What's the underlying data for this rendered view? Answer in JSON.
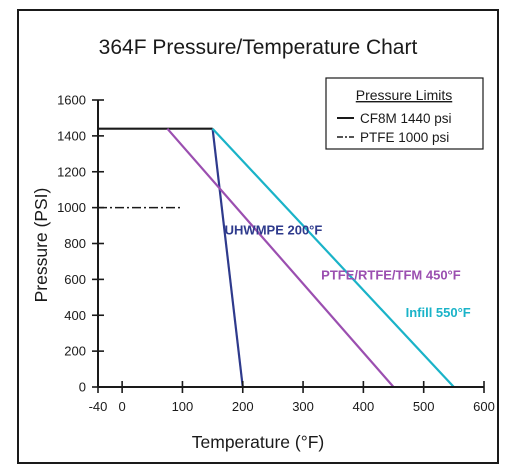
{
  "chart_data": {
    "type": "line",
    "title": "364F Pressure/Temperature Chart",
    "xlabel": "Temperature (°F)",
    "ylabel": "Pressure (PSI)",
    "xlim": [
      -40,
      600
    ],
    "ylim": [
      0,
      1600
    ],
    "x_ticks": [
      -40,
      0,
      100,
      200,
      300,
      400,
      500,
      600
    ],
    "y_ticks": [
      0,
      200,
      400,
      600,
      800,
      1000,
      1200,
      1400,
      1600
    ],
    "grid": false,
    "legend": {
      "title": "Pressure Limits",
      "placement": "top-right",
      "entries": [
        {
          "label": "CF8M 1440 psi",
          "style": "solid"
        },
        {
          "label": "PTFE 1000 psi",
          "style": "dash-dot"
        }
      ]
    },
    "series": [
      {
        "name": "CF8M 1440 psi",
        "color": "#1a1a1a",
        "style": "solid",
        "x": [
          -40,
          150
        ],
        "y": [
          1440,
          1440
        ]
      },
      {
        "name": "PTFE 1000 psi",
        "color": "#1a1a1a",
        "style": "dash-dot",
        "x": [
          -40,
          100
        ],
        "y": [
          1000,
          1000
        ]
      },
      {
        "name": "UHWMPE 200°F",
        "color": "#2e3a8c",
        "style": "solid",
        "x": [
          150,
          200
        ],
        "y": [
          1440,
          0
        ]
      },
      {
        "name": "PTFE/RTFE/TFM 450°F",
        "color": "#9b4fb0",
        "style": "solid",
        "x": [
          75,
          450
        ],
        "y": [
          1440,
          0
        ]
      },
      {
        "name": "Infill 550°F",
        "color": "#1ab3c8",
        "style": "solid",
        "x": [
          150,
          550
        ],
        "y": [
          1440,
          0
        ]
      }
    ],
    "annotations": [
      {
        "text": "UHWMPE 200°F",
        "color": "#2e3a8c",
        "x": 170,
        "y": 850
      },
      {
        "text": "PTFE/RTFE/TFM 450°F",
        "color": "#9b4fb0",
        "x": 330,
        "y": 600
      },
      {
        "text": "Infill 550°F",
        "color": "#1ab3c8",
        "x": 470,
        "y": 390
      }
    ]
  }
}
